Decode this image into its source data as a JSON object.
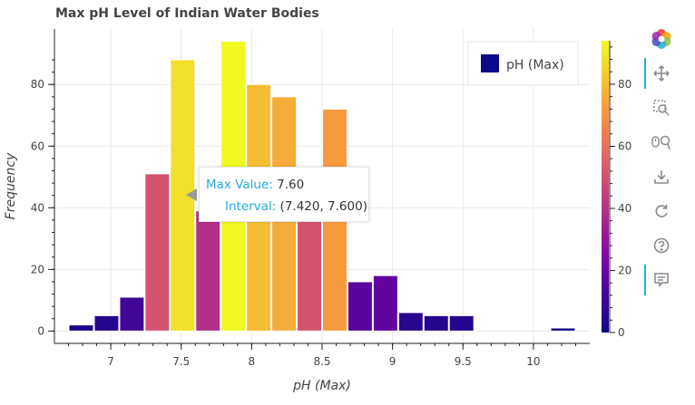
{
  "chart_data": {
    "type": "bar",
    "title": "Max pH Level of Indian Water Bodies",
    "xlabel": "pH (Max)",
    "ylabel": "Frequency",
    "xlim": [
      6.6,
      10.4
    ],
    "ylim": [
      -4,
      98
    ],
    "x_ticks": [
      "7",
      "7.5",
      "8",
      "8.5",
      "9",
      "9.5",
      "10"
    ],
    "y_ticks": [
      "0",
      "20",
      "40",
      "60",
      "80"
    ],
    "bins": [
      {
        "start": 6.7,
        "end": 6.88,
        "count": 2
      },
      {
        "start": 6.88,
        "end": 7.06,
        "count": 5
      },
      {
        "start": 7.06,
        "end": 7.24,
        "count": 11
      },
      {
        "start": 7.24,
        "end": 7.42,
        "count": 51
      },
      {
        "start": 7.42,
        "end": 7.6,
        "count": 88
      },
      {
        "start": 7.6,
        "end": 7.78,
        "count": 39
      },
      {
        "start": 7.78,
        "end": 7.96,
        "count": 94
      },
      {
        "start": 7.96,
        "end": 8.14,
        "count": 80
      },
      {
        "start": 8.14,
        "end": 8.32,
        "count": 76
      },
      {
        "start": 8.32,
        "end": 8.5,
        "count": 51
      },
      {
        "start": 8.5,
        "end": 8.68,
        "count": 72
      },
      {
        "start": 8.68,
        "end": 8.86,
        "count": 16
      },
      {
        "start": 8.86,
        "end": 9.04,
        "count": 18
      },
      {
        "start": 9.04,
        "end": 9.22,
        "count": 6
      },
      {
        "start": 9.22,
        "end": 9.4,
        "count": 5
      },
      {
        "start": 9.4,
        "end": 9.58,
        "count": 5
      },
      {
        "start": 10.12,
        "end": 10.3,
        "count": 1
      }
    ],
    "legend": {
      "label": "pH (Max)",
      "color": "#0d0887",
      "placement": "top-right"
    },
    "colorbar": {
      "range": [
        0,
        94
      ],
      "ticks": [
        "0",
        "20",
        "40",
        "60",
        "80"
      ],
      "colormap": "plasma"
    },
    "tooltip": {
      "max_value_label": "Max Value:",
      "max_value": "7.60",
      "interval_label": "Interval:",
      "interval": "(7.420, 7.600)"
    },
    "grid": true
  },
  "toolbar": {
    "items": [
      "logo-icon",
      "pan-icon",
      "box-zoom-icon",
      "wheel-zoom-icon",
      "save-icon",
      "reset-icon",
      "help-icon",
      "hover-icon"
    ]
  }
}
